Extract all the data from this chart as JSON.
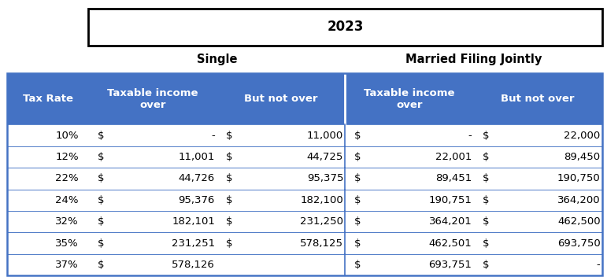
{
  "title": "2023",
  "col_headers": [
    "Tax Rate",
    "Taxable income\nover",
    "But not over",
    "Taxable income\nover",
    "But not over"
  ],
  "section_headers": [
    "Single",
    "Married Filing Jointly"
  ],
  "header_bg": "#4472C4",
  "header_fg": "#FFFFFF",
  "border_color": "#4472C4",
  "title_border_color": "#000000",
  "rows": [
    [
      "10%",
      "$",
      "-",
      "$",
      "11,000",
      "$",
      "-",
      "$",
      "22,000"
    ],
    [
      "12%",
      "$",
      "11,001",
      "$",
      "44,725",
      "$",
      "22,001",
      "$",
      "89,450"
    ],
    [
      "22%",
      "$",
      "44,726",
      "$",
      "95,375",
      "$",
      "89,451",
      "$",
      "190,750"
    ],
    [
      "24%",
      "$",
      "95,376",
      "$",
      "182,100",
      "$",
      "190,751",
      "$",
      "364,200"
    ],
    [
      "32%",
      "$",
      "182,101",
      "$",
      "231,250",
      "$",
      "364,201",
      "$",
      "462,500"
    ],
    [
      "35%",
      "$",
      "231,251",
      "$",
      "578,125",
      "$",
      "462,501",
      "$",
      "693,750"
    ],
    [
      "37%",
      "$",
      "578,126",
      "",
      "",
      "$",
      "693,751",
      "$",
      "-"
    ]
  ],
  "title_fontsize": 12,
  "header_fontsize": 9.5,
  "section_fontsize": 10.5,
  "cell_fontsize": 9.5,
  "fig_width": 7.71,
  "fig_height": 3.52,
  "dpi": 100
}
